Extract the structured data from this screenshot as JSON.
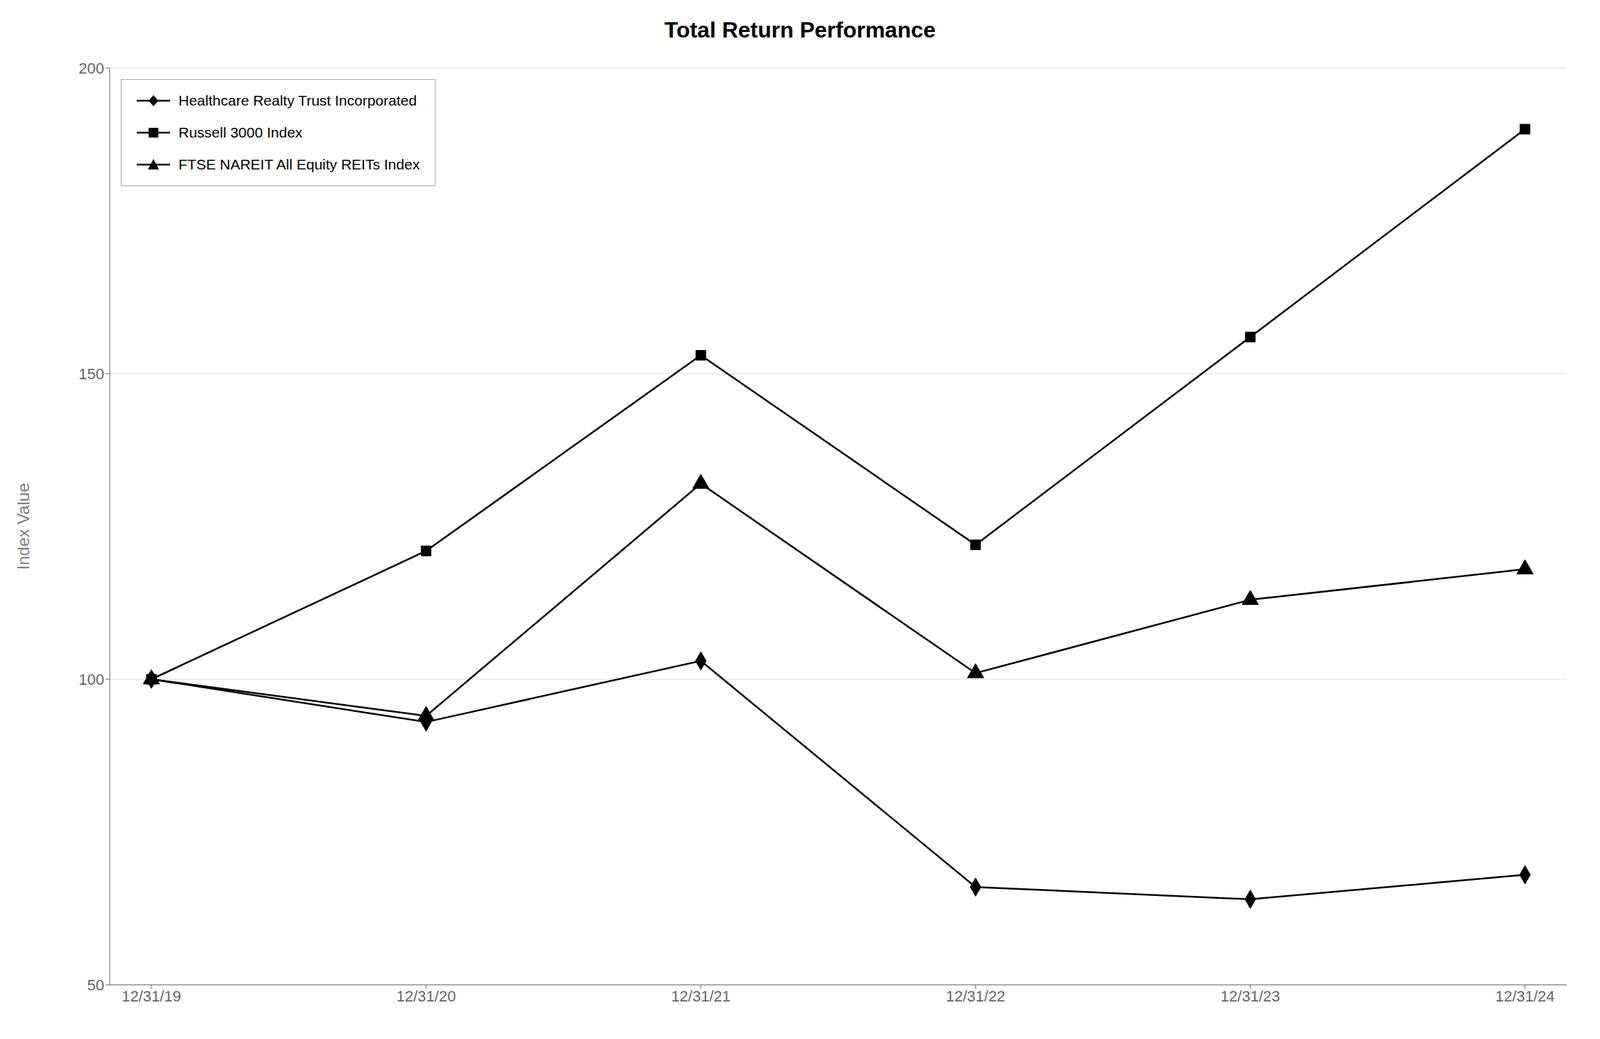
{
  "chart_data": {
    "type": "line",
    "title": "Total Return Performance",
    "ylabel": "Index Value",
    "categories": [
      "12/31/19",
      "12/31/20",
      "12/31/21",
      "12/31/22",
      "12/31/23",
      "12/31/24"
    ],
    "series": [
      {
        "name": "Healthcare Realty Trust Incorporated",
        "color": "#000000",
        "marker": "diamond",
        "values": [
          100,
          93,
          103,
          66,
          64,
          68
        ]
      },
      {
        "name": "Russell 3000 Index",
        "color": "#000000",
        "marker": "square",
        "values": [
          100,
          121,
          153,
          122,
          156,
          190
        ]
      },
      {
        "name": "FTSE NAREIT All Equity REITs Index",
        "color": "#000000",
        "marker": "triangle",
        "values": [
          100,
          94,
          132,
          101,
          113,
          118
        ]
      }
    ],
    "ylim": [
      50,
      200
    ],
    "yticks": [
      50,
      100,
      150,
      200
    ],
    "grid": true,
    "legend": "upper left"
  }
}
